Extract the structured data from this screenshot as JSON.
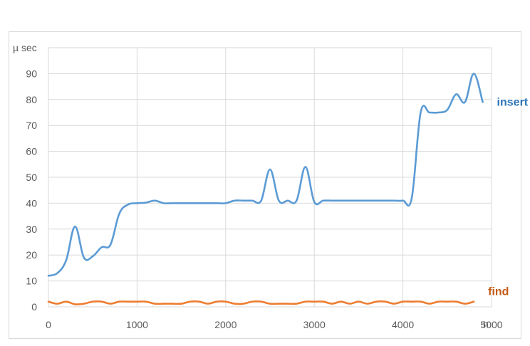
{
  "chart_data": {
    "type": "line",
    "title": "",
    "xlabel": "n",
    "ylabel": "µ sec",
    "xlim": [
      0,
      5000
    ],
    "ylim": [
      0,
      100
    ],
    "x_ticks": [
      "0",
      "1000",
      "2000",
      "3000",
      "4000",
      "5000"
    ],
    "y_ticks": [
      "0",
      "10",
      "20",
      "30",
      "40",
      "50",
      "60",
      "70",
      "80",
      "90"
    ],
    "grid": true,
    "legend": "inline labels at right of each series",
    "series": [
      {
        "name": "insert",
        "color": "#5b9bd5",
        "label_color": "#2e75b6",
        "points": [
          [
            0,
            12
          ],
          [
            100,
            13
          ],
          [
            200,
            18
          ],
          [
            300,
            31
          ],
          [
            400,
            19
          ],
          [
            500,
            19.5
          ],
          [
            600,
            23
          ],
          [
            700,
            24
          ],
          [
            800,
            36
          ],
          [
            900,
            39.5
          ],
          [
            1000,
            40
          ],
          [
            1100,
            40.2
          ],
          [
            1200,
            41
          ],
          [
            1300,
            40
          ],
          [
            1400,
            40
          ],
          [
            1500,
            40
          ],
          [
            1600,
            40
          ],
          [
            1700,
            40
          ],
          [
            1800,
            40
          ],
          [
            1900,
            40
          ],
          [
            2000,
            40
          ],
          [
            2100,
            41
          ],
          [
            2200,
            41
          ],
          [
            2300,
            41
          ],
          [
            2400,
            41
          ],
          [
            2500,
            53
          ],
          [
            2600,
            41
          ],
          [
            2700,
            41
          ],
          [
            2800,
            41
          ],
          [
            2900,
            54
          ],
          [
            3000,
            40.5
          ],
          [
            3100,
            41
          ],
          [
            3200,
            41
          ],
          [
            3300,
            41
          ],
          [
            3400,
            41
          ],
          [
            3500,
            41
          ],
          [
            3600,
            41
          ],
          [
            3700,
            41
          ],
          [
            3800,
            41
          ],
          [
            3900,
            41
          ],
          [
            4000,
            41
          ],
          [
            4100,
            42
          ],
          [
            4200,
            75
          ],
          [
            4300,
            75
          ],
          [
            4400,
            75
          ],
          [
            4500,
            76
          ],
          [
            4600,
            82
          ],
          [
            4700,
            79
          ],
          [
            4800,
            90
          ],
          [
            4900,
            79
          ]
        ]
      },
      {
        "name": "find",
        "color": "#ed7d31",
        "label_color": "#c55a11",
        "points": [
          [
            0,
            2
          ],
          [
            100,
            1.2
          ],
          [
            200,
            2
          ],
          [
            300,
            1
          ],
          [
            400,
            1.2
          ],
          [
            500,
            2
          ],
          [
            600,
            2
          ],
          [
            700,
            1.2
          ],
          [
            800,
            2
          ],
          [
            900,
            2
          ],
          [
            1000,
            2
          ],
          [
            1100,
            2
          ],
          [
            1200,
            1.2
          ],
          [
            1300,
            1.2
          ],
          [
            1400,
            1.2
          ],
          [
            1500,
            1.2
          ],
          [
            1600,
            2
          ],
          [
            1700,
            2
          ],
          [
            1800,
            1.2
          ],
          [
            1900,
            2
          ],
          [
            2000,
            2
          ],
          [
            2100,
            1.2
          ],
          [
            2200,
            1.2
          ],
          [
            2300,
            2
          ],
          [
            2400,
            2
          ],
          [
            2500,
            1.2
          ],
          [
            2600,
            1.2
          ],
          [
            2700,
            1.2
          ],
          [
            2800,
            1.2
          ],
          [
            2900,
            2
          ],
          [
            3000,
            2
          ],
          [
            3100,
            2
          ],
          [
            3200,
            1.2
          ],
          [
            3300,
            2
          ],
          [
            3400,
            1.2
          ],
          [
            3500,
            2
          ],
          [
            3600,
            1.2
          ],
          [
            3700,
            2
          ],
          [
            3800,
            2
          ],
          [
            3900,
            1.2
          ],
          [
            4000,
            2
          ],
          [
            4100,
            2
          ],
          [
            4200,
            2
          ],
          [
            4300,
            1.2
          ],
          [
            4400,
            2
          ],
          [
            4500,
            2
          ],
          [
            4600,
            2
          ],
          [
            4700,
            1.2
          ],
          [
            4800,
            2
          ]
        ]
      }
    ]
  }
}
